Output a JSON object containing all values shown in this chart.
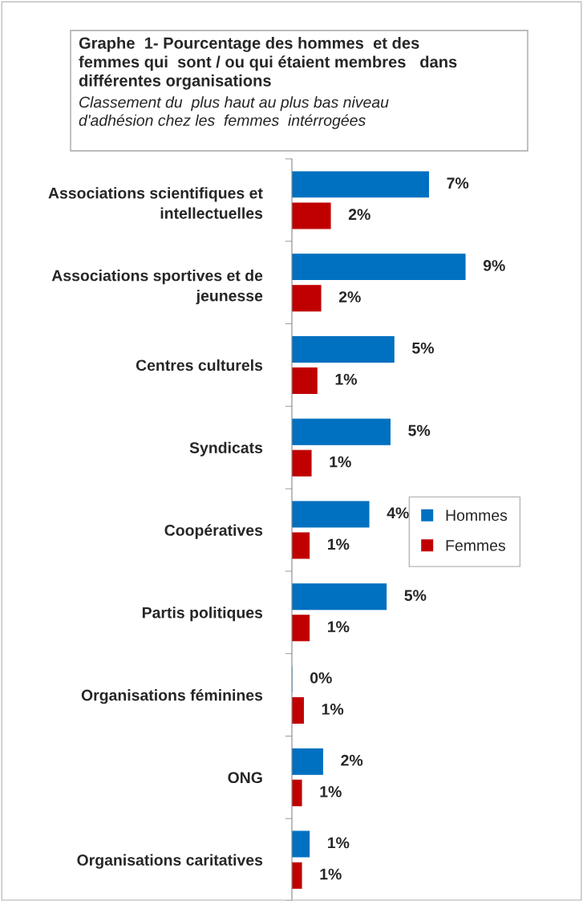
{
  "chart_data": {
    "type": "bar",
    "orientation": "horizontal",
    "title": "Graphe  1- Pourcentage des hommes  et des\nfemmes qui  sont / ou qui étaient membres   dans\ndifférentes organisations",
    "subtitle": "Classement du  plus haut au plus bas niveau\nd'adhésion chez les  femmes  intérrogées",
    "categories": [
      "Associations scientifiques et\nintellectuelles",
      "Associations sportives et de\njeunesse",
      "Centres culturels",
      "Syndicats",
      "Coopératives",
      "Partis politiques",
      "Organisations féminines",
      "ONG",
      "Organisations caritatives"
    ],
    "series": [
      {
        "name": "Hommes",
        "color": "#0070c0",
        "values": [
          7.1,
          9.0,
          5.3,
          5.1,
          4.0,
          4.9,
          0,
          1.6,
          0.9
        ],
        "value_labels": [
          "7%",
          "9%",
          "5%",
          "5%",
          "4%",
          "5%",
          "0%",
          "2%",
          "1%"
        ]
      },
      {
        "name": "Femmes",
        "color": "#c00000",
        "values": [
          2.0,
          1.5,
          1.3,
          1.0,
          0.9,
          0.9,
          0.6,
          0.5,
          0.5
        ],
        "value_labels": [
          "2%",
          "2%",
          "1%",
          "1%",
          "1%",
          "1%",
          "1%",
          "1%",
          "1%"
        ]
      }
    ],
    "tick_labels": "y",
    "legend": "right",
    "grid": false
  }
}
